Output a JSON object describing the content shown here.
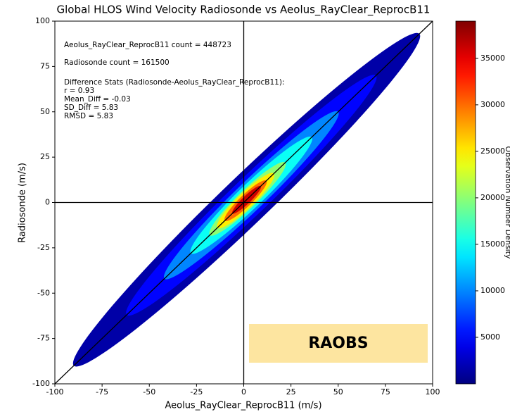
{
  "chart_data": {
    "type": "density-scatter",
    "title": "Global HLOS Wind Velocity Radiosonde vs Aeolus_RayClear_ReprocB11",
    "x_label": "Aeolus_RayClear_ReprocB11 (m/s)",
    "y_label": "Radiosonde (m/s)",
    "xlim": [
      -100,
      100
    ],
    "ylim": [
      -100,
      100
    ],
    "xticks": [
      -100,
      -75,
      -50,
      -25,
      0,
      25,
      50,
      75,
      100
    ],
    "yticks": [
      -100,
      -75,
      -50,
      -25,
      0,
      25,
      50,
      75,
      100
    ],
    "annotations": [
      "Aeolus_RayClear_ReprocB11 count = 448723",
      "Radiosonde count = 161500",
      "Difference Stats (Radiosonde-Aeolus_RayClear_ReprocB11):",
      "r = 0.93",
      "Mean_Diff = -0.03",
      "SD_Diff = 5.83",
      "RMSD = 5.83"
    ],
    "stamp": "RAOBS",
    "colorbar": {
      "label": "Observation Number Density",
      "lim": [
        0,
        39000
      ],
      "ticks": [
        5000,
        10000,
        15000,
        20000,
        25000,
        30000,
        35000
      ],
      "colormap": "jet"
    },
    "density_regions": [
      {
        "density": 1500,
        "x_extent": [
          -90,
          93
        ],
        "half_width": 18
      },
      {
        "density": 5000,
        "x_extent": [
          -62,
          70
        ],
        "half_width": 14
      },
      {
        "density": 10000,
        "x_extent": [
          -42,
          50
        ],
        "half_width": 11
      },
      {
        "density": 15000,
        "x_extent": [
          -28,
          36
        ],
        "half_width": 9
      },
      {
        "density": 20000,
        "x_extent": [
          -18,
          22
        ],
        "half_width": 7
      },
      {
        "density": 25000,
        "x_extent": [
          -14,
          16
        ],
        "half_width": 6
      },
      {
        "density": 30000,
        "x_extent": [
          -10,
          12
        ],
        "half_width": 4.5
      },
      {
        "density": 36000,
        "x_extent": [
          -6,
          9
        ],
        "half_width": 3
      }
    ]
  }
}
